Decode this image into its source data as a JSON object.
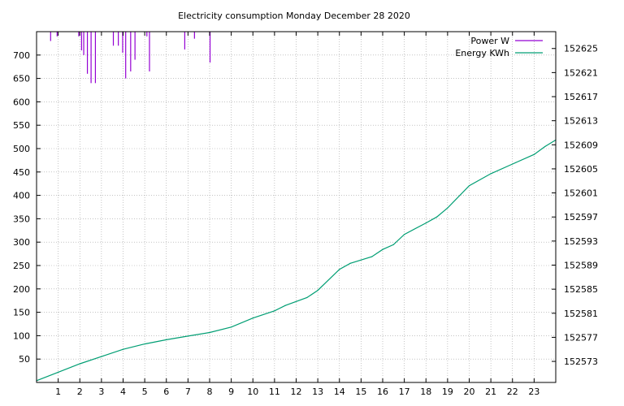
{
  "chart_data": {
    "type": "line",
    "title": "Electricity consumption Monday December 28 2020",
    "xlabel": "",
    "ylabel": "",
    "y2label": "",
    "grid": true,
    "legend_position": "top-right",
    "x_ticks": [
      1,
      2,
      3,
      4,
      5,
      6,
      7,
      8,
      9,
      10,
      11,
      12,
      13,
      14,
      15,
      16,
      17,
      18,
      19,
      20,
      21,
      22,
      23
    ],
    "xlim": [
      0,
      24
    ],
    "y_ticks": [
      50,
      100,
      150,
      200,
      250,
      300,
      350,
      400,
      450,
      500,
      550,
      600,
      650,
      700
    ],
    "ylim": [
      0,
      750
    ],
    "y2_ticks": [
      152573,
      152577,
      152581,
      152585,
      152589,
      152593,
      152597,
      152601,
      152605,
      152609,
      152613,
      152617,
      152621,
      152625
    ],
    "y2lim": [
      152569.5,
      152627.8
    ],
    "series": [
      {
        "name": "Power W",
        "axis": "y",
        "color": "#9400d3",
        "render": "spikes",
        "x": [
          0.65,
          0.95,
          1.95,
          2.08,
          2.18,
          2.35,
          2.52,
          2.72,
          3.55,
          3.78,
          3.98,
          4.12,
          4.35,
          4.55,
          5.1,
          5.22,
          6.85,
          7.3,
          8.02
        ],
        "values": [
          730,
          740,
          740,
          710,
          700,
          660,
          640,
          640,
          720,
          720,
          705,
          650,
          665,
          690,
          740,
          665,
          712,
          735,
          684
        ]
      },
      {
        "name": "Energy KWh",
        "axis": "y2",
        "color": "#009e73",
        "x": [
          0,
          1,
          2,
          3,
          4,
          5,
          6,
          7,
          8,
          9,
          10,
          11,
          11.5,
          12.5,
          13,
          14,
          14.5,
          15.5,
          16,
          16.5,
          17,
          18,
          18.5,
          19,
          20,
          21,
          22,
          23,
          23.5,
          24
        ],
        "values": [
          152569.8,
          152571.2,
          152572.6,
          152573.8,
          152575.0,
          152575.9,
          152576.6,
          152577.2,
          152577.8,
          152578.7,
          152580.2,
          152581.4,
          152582.3,
          152583.6,
          152584.8,
          152588.3,
          152589.3,
          152590.4,
          152591.6,
          152592.4,
          152594.1,
          152596.0,
          152597.0,
          152598.5,
          152602.2,
          152604.2,
          152605.8,
          152607.4,
          152608.7,
          152609.8
        ]
      }
    ]
  }
}
